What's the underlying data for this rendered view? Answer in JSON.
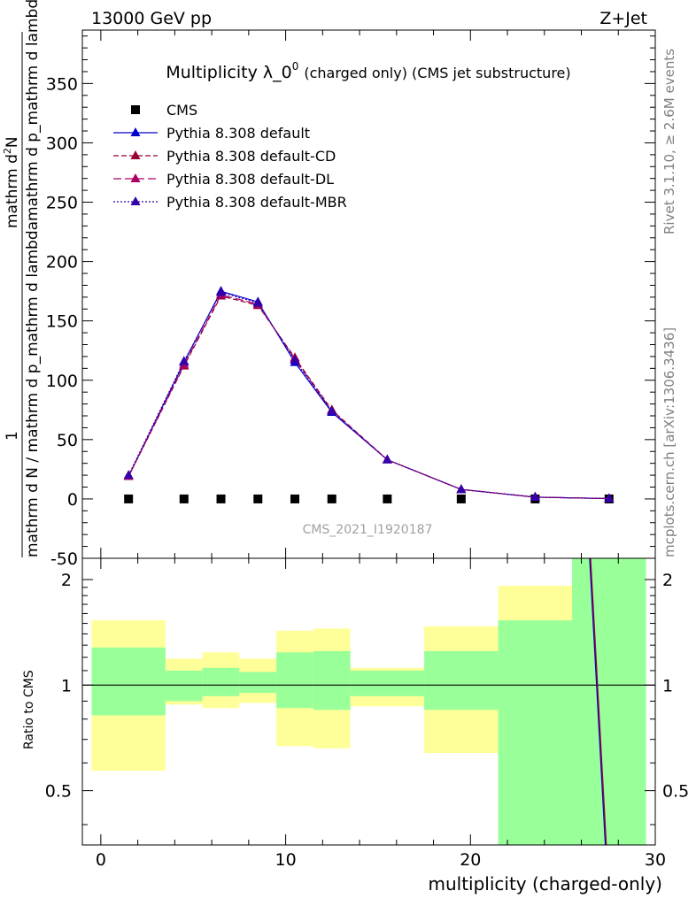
{
  "header": {
    "left": "13000 GeV pp",
    "right": "Z+Jet"
  },
  "side": {
    "rivet": "Rivet 3.1.10, ≥ 2.6M events",
    "mcplots": "mcplots.cern.ch [arXiv:1306.3436]"
  },
  "watermark": "CMS_2021_I1920187",
  "chart_data": [
    {
      "type": "line",
      "title_main": "Multiplicity λ_0",
      "title_sup": "0",
      "title_tail": "(charged only) (CMS jet substructure)",
      "ylabel_numerator_a": "1",
      "ylabel_denominator_a": "mathrm d N / mathrm d p_mathrm d lambda",
      "ylabel_numerator_b": "mathrm d",
      "ylabel_numerator_b_sup": "2",
      "ylabel_numerator_b_tail": "N",
      "ylabel_denominator_b": "mathrm d p_mathrm d lambda",
      "ylim": [
        -50,
        395
      ],
      "yticks": [
        -50,
        0,
        50,
        100,
        150,
        200,
        250,
        300,
        350
      ],
      "xlim": [
        -1,
        30
      ],
      "grid": false,
      "legend_position": "top-left",
      "legend": [
        "CMS",
        "Pythia 8.308 default",
        "Pythia 8.308 default-CD",
        "Pythia 8.308 default-DL",
        "Pythia 8.308 default-MBR"
      ],
      "x": [
        1.5,
        4.5,
        6.5,
        8.5,
        10.5,
        12.5,
        15.5,
        19.5,
        23.5,
        27.5
      ],
      "series": [
        {
          "name": "CMS",
          "color": "#000000",
          "marker": "square",
          "values": [
            0,
            0,
            0,
            0,
            0,
            0,
            0,
            0,
            0,
            0
          ]
        },
        {
          "name": "Pythia 8.308 default",
          "color": "#0000cc",
          "marker": "triangle",
          "dash": "",
          "values": [
            19,
            115,
            175,
            166,
            115,
            73,
            33,
            8,
            1.5,
            0.3
          ]
        },
        {
          "name": "Pythia 8.308 default-CD",
          "color": "#990033",
          "marker": "triangle",
          "dash": "6,3",
          "values": [
            19,
            112,
            171,
            163,
            119,
            75,
            33,
            8,
            1.5,
            0.3
          ]
        },
        {
          "name": "Pythia 8.308 default-DL",
          "color": "#aa0066",
          "marker": "triangle",
          "dash": "9,4",
          "values": [
            19,
            113,
            172,
            164,
            118,
            74,
            33,
            8,
            1.5,
            0.3
          ]
        },
        {
          "name": "Pythia 8.308 default-MBR",
          "color": "#3300aa",
          "marker": "triangle",
          "dash": "2,2",
          "values": [
            20,
            116,
            174,
            165,
            117,
            74,
            33,
            8,
            1.5,
            0.3
          ]
        }
      ]
    },
    {
      "type": "area",
      "ylabel": "Ratio to CMS",
      "xlabel": "multiplicity (charged-only)",
      "xlim": [
        -1,
        30
      ],
      "ylim": [
        0.35,
        2.3
      ],
      "xticks": [
        0,
        10,
        20,
        30
      ],
      "yticks": [
        0.5,
        1,
        2
      ],
      "reference": 1,
      "bands": [
        {
          "x0": -0.5,
          "x1": 3.5,
          "inner": [
            0.82,
            1.28
          ],
          "outer": [
            0.57,
            1.53
          ]
        },
        {
          "x0": 3.5,
          "x1": 5.5,
          "inner": [
            0.9,
            1.1
          ],
          "outer": [
            0.88,
            1.19
          ]
        },
        {
          "x0": 5.5,
          "x1": 7.5,
          "inner": [
            0.93,
            1.12
          ],
          "outer": [
            0.86,
            1.24
          ]
        },
        {
          "x0": 7.5,
          "x1": 9.5,
          "inner": [
            0.95,
            1.09
          ],
          "outer": [
            0.89,
            1.19
          ]
        },
        {
          "x0": 9.5,
          "x1": 11.5,
          "inner": [
            0.86,
            1.24
          ],
          "outer": [
            0.67,
            1.43
          ]
        },
        {
          "x0": 11.5,
          "x1": 13.5,
          "inner": [
            0.85,
            1.25
          ],
          "outer": [
            0.66,
            1.45
          ]
        },
        {
          "x0": 13.5,
          "x1": 17.5,
          "inner": [
            0.93,
            1.1
          ],
          "outer": [
            0.87,
            1.12
          ]
        },
        {
          "x0": 17.5,
          "x1": 21.5,
          "inner": [
            0.85,
            1.25
          ],
          "outer": [
            0.64,
            1.47
          ]
        },
        {
          "x0": 21.5,
          "x1": 25.5,
          "inner": [
            0.35,
            1.53
          ],
          "outer": [
            0.35,
            1.92
          ]
        },
        {
          "x0": 25.5,
          "x1": 29.5,
          "inner": [
            0.35,
            2.3
          ],
          "outer": [
            0.35,
            2.3
          ]
        }
      ],
      "ratio_lines": [
        {
          "color": "#0000cc",
          "points": [
            [
              26.45,
              2.3
            ],
            [
              27.3,
              0.35
            ]
          ]
        },
        {
          "color": "#990033",
          "points": [
            [
              26.5,
              2.3
            ],
            [
              27.35,
              0.35
            ]
          ]
        }
      ]
    }
  ]
}
